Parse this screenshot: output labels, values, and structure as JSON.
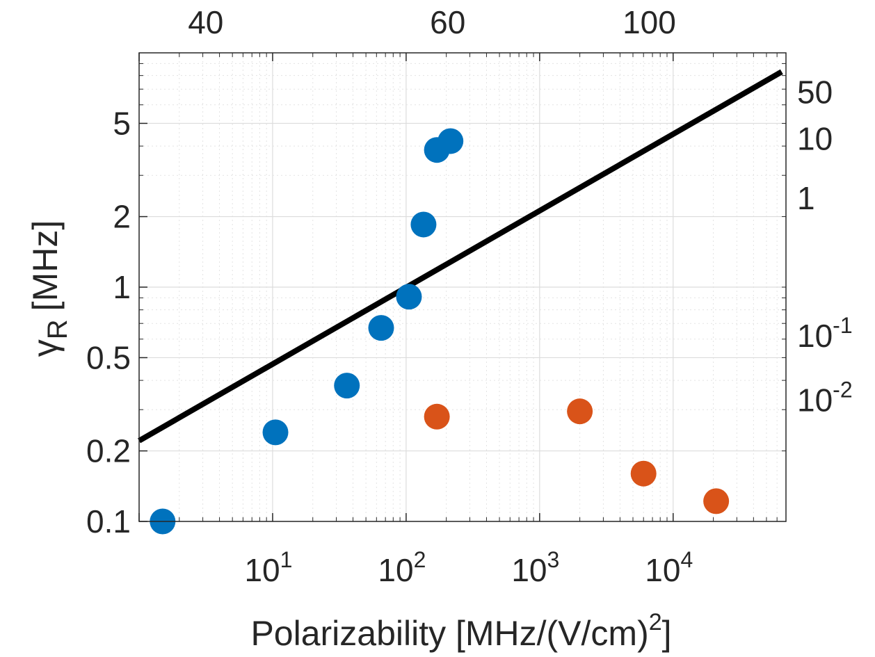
{
  "chart_data": {
    "type": "scatter",
    "xlabel": {
      "main": "Polarizability [MHz/(V/cm)",
      "sup": "2",
      "tail": "]"
    },
    "ylabel": {
      "greek": "γ",
      "sub": "R",
      "rest": "[MHz]"
    },
    "x_scale": "log",
    "y_scale": "log",
    "xlim": [
      1,
      70000
    ],
    "ylim": [
      0.1,
      10
    ],
    "grid": true,
    "minor_grid": true,
    "x_ticks": [
      {
        "value": 10,
        "base": "10",
        "exp": "1"
      },
      {
        "value": 100,
        "base": "10",
        "exp": "2"
      },
      {
        "value": 1000,
        "base": "10",
        "exp": "3"
      },
      {
        "value": 10000,
        "base": "10",
        "exp": "4"
      }
    ],
    "y_ticks": [
      {
        "value": 0.1,
        "label": "0.1"
      },
      {
        "value": 0.2,
        "label": "0.2"
      },
      {
        "value": 0.5,
        "label": "0.5"
      },
      {
        "value": 1,
        "label": "1"
      },
      {
        "value": 2,
        "label": "2"
      },
      {
        "value": 5,
        "label": "5"
      }
    ],
    "top_axis_ticks": [
      {
        "position_x": 2,
        "label": "40"
      },
      {
        "position_x": 130,
        "label": "60"
      },
      {
        "position_x": 4200,
        "label": "100"
      }
    ],
    "right_axis_ticks": [
      {
        "position_y": 6.8,
        "base": "50",
        "exp": ""
      },
      {
        "position_y": 4.3,
        "base": "10",
        "exp": ""
      },
      {
        "position_y": 2.4,
        "base": "1",
        "exp": ""
      },
      {
        "position_y": 0.62,
        "base": "10",
        "exp": "-1"
      },
      {
        "position_y": 0.33,
        "base": "10",
        "exp": "-2"
      }
    ],
    "series": [
      {
        "color": "#0072BD",
        "points": [
          [
            1.5,
            0.1
          ],
          [
            10.5,
            0.24
          ],
          [
            36,
            0.38
          ],
          [
            65,
            0.67
          ],
          [
            105,
            0.91
          ],
          [
            135,
            1.85
          ],
          [
            170,
            3.85
          ],
          [
            215,
            4.2
          ]
        ]
      },
      {
        "color": "#D95319",
        "points": [
          [
            170,
            0.28
          ],
          [
            2000,
            0.295
          ],
          [
            6000,
            0.16
          ],
          [
            21000,
            0.122
          ]
        ]
      }
    ],
    "fit_line": {
      "color": "#000000",
      "points": [
        [
          1,
          0.221
        ],
        [
          65000,
          8.3
        ]
      ]
    }
  }
}
